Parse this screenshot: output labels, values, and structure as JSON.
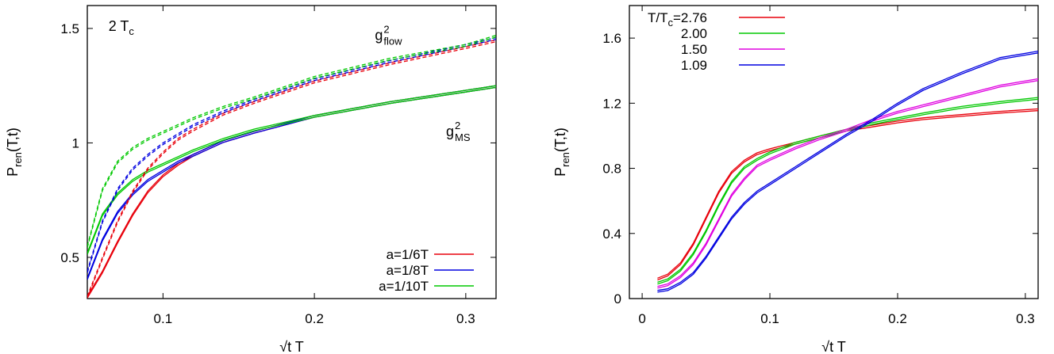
{
  "chart_data": [
    {
      "type": "line",
      "panel": "left",
      "xlabel": "√t T",
      "ylabel": {
        "main": "P",
        "sub": "ren",
        "args": "(T,t)"
      },
      "xlim": [
        0.05,
        0.32
      ],
      "ylim": [
        0.32,
        1.6
      ],
      "xticks": [
        0.1,
        0.2,
        0.3
      ],
      "xtick_labels": [
        "0.1",
        "0.2",
        "0.3"
      ],
      "yticks": [
        0.5,
        1,
        1.5
      ],
      "ytick_labels": [
        "0.5",
        "1",
        "1.5"
      ],
      "annotations": [
        {
          "main": "2 T",
          "sub": "c",
          "x": 0.064,
          "y": 1.49
        },
        {
          "main": "g",
          "sup": "2",
          "sub": "flow",
          "x": 0.24,
          "y": 1.45
        },
        {
          "main": "g",
          "sup": "2",
          "sub": "MS",
          "x": 0.287,
          "y": 1.03
        }
      ],
      "legend_position": "bottom-right",
      "legend": [
        {
          "label": "a=1/6T",
          "color": "#e8000b"
        },
        {
          "label": "a=1/8T",
          "color": "#0000e0"
        },
        {
          "label": "a=1/10T",
          "color": "#00c800"
        }
      ],
      "series": [
        {
          "name": "a=1/6T",
          "scheme": "MS",
          "style": "solid",
          "color": "#e8000b",
          "x": [
            0.05,
            0.06,
            0.07,
            0.08,
            0.09,
            0.1,
            0.11,
            0.12,
            0.14,
            0.16,
            0.2,
            0.25,
            0.3,
            0.32
          ],
          "y": [
            0.33,
            0.44,
            0.57,
            0.69,
            0.79,
            0.86,
            0.91,
            0.95,
            1.01,
            1.05,
            1.12,
            1.18,
            1.23,
            1.25
          ]
        },
        {
          "name": "a=1/8T",
          "scheme": "MS",
          "style": "solid",
          "color": "#0000e0",
          "x": [
            0.05,
            0.06,
            0.07,
            0.08,
            0.09,
            0.1,
            0.11,
            0.12,
            0.14,
            0.16,
            0.2,
            0.25,
            0.3,
            0.32
          ],
          "y": [
            0.41,
            0.58,
            0.7,
            0.78,
            0.84,
            0.88,
            0.92,
            0.95,
            1.01,
            1.05,
            1.12,
            1.18,
            1.23,
            1.25
          ]
        },
        {
          "name": "a=1/10T",
          "scheme": "MS",
          "style": "solid",
          "color": "#00c800",
          "x": [
            0.05,
            0.06,
            0.07,
            0.08,
            0.09,
            0.1,
            0.11,
            0.12,
            0.14,
            0.16,
            0.2,
            0.25,
            0.3,
            0.32
          ],
          "y": [
            0.52,
            0.69,
            0.78,
            0.84,
            0.88,
            0.91,
            0.94,
            0.97,
            1.02,
            1.06,
            1.12,
            1.18,
            1.23,
            1.25
          ]
        },
        {
          "name": "a=1/6T",
          "scheme": "flow",
          "style": "dashed",
          "color": "#e8000b",
          "x": [
            0.05,
            0.06,
            0.07,
            0.08,
            0.09,
            0.1,
            0.11,
            0.12,
            0.14,
            0.16,
            0.2,
            0.25,
            0.3,
            0.32
          ],
          "y": [
            0.33,
            0.5,
            0.66,
            0.79,
            0.89,
            0.96,
            1.02,
            1.06,
            1.13,
            1.18,
            1.27,
            1.35,
            1.42,
            1.45
          ]
        },
        {
          "name": "a=1/8T",
          "scheme": "flow",
          "style": "dashed",
          "color": "#0000e0",
          "x": [
            0.05,
            0.06,
            0.07,
            0.08,
            0.09,
            0.1,
            0.11,
            0.12,
            0.14,
            0.16,
            0.2,
            0.25,
            0.3,
            0.32
          ],
          "y": [
            0.44,
            0.66,
            0.8,
            0.89,
            0.95,
            1.0,
            1.04,
            1.08,
            1.14,
            1.19,
            1.28,
            1.36,
            1.43,
            1.46
          ]
        },
        {
          "name": "a=1/10T",
          "scheme": "flow",
          "style": "dashed",
          "color": "#00c800",
          "x": [
            0.05,
            0.06,
            0.07,
            0.08,
            0.09,
            0.1,
            0.11,
            0.12,
            0.14,
            0.16,
            0.2,
            0.25,
            0.3,
            0.32
          ],
          "y": [
            0.55,
            0.8,
            0.92,
            0.98,
            1.02,
            1.05,
            1.08,
            1.11,
            1.16,
            1.2,
            1.29,
            1.37,
            1.43,
            1.47
          ]
        }
      ]
    },
    {
      "type": "line",
      "panel": "right",
      "xlabel": "√t T",
      "ylabel": {
        "main": "P",
        "sub": "ren",
        "args": "(T,t)"
      },
      "xlim": [
        -0.01,
        0.31
      ],
      "ylim": [
        0,
        1.8
      ],
      "xticks": [
        0,
        0.1,
        0.2,
        0.3
      ],
      "xtick_labels": [
        "0",
        "0.1",
        "0.2",
        "0.3"
      ],
      "yticks": [
        0,
        0.4,
        0.8,
        1.2,
        1.6
      ],
      "ytick_labels": [
        "0",
        "0.4",
        "0.8",
        "1.2",
        "1.6"
      ],
      "legend_position": "top-left",
      "legend": [
        {
          "label_main": "T/T",
          "label_sub": "c",
          "label_rest": "=2.76",
          "color": "#e8000b"
        },
        {
          "label_main": "",
          "label_sub": "",
          "label_rest": "2.00",
          "color": "#00c800"
        },
        {
          "label_main": "",
          "label_sub": "",
          "label_rest": "1.50",
          "color": "#e000e0"
        },
        {
          "label_main": "",
          "label_sub": "",
          "label_rest": "1.09",
          "color": "#0000e0"
        }
      ],
      "series": [
        {
          "name": "T/Tc=2.76",
          "color": "#e8000b",
          "x": [
            0.012,
            0.02,
            0.03,
            0.04,
            0.05,
            0.06,
            0.07,
            0.08,
            0.09,
            0.1,
            0.12,
            0.14,
            0.16,
            0.18,
            0.2,
            0.22,
            0.25,
            0.28,
            0.31
          ],
          "y": [
            0.125,
            0.15,
            0.22,
            0.34,
            0.5,
            0.66,
            0.78,
            0.85,
            0.895,
            0.92,
            0.96,
            1.0,
            1.04,
            1.065,
            1.09,
            1.11,
            1.13,
            1.15,
            1.165
          ]
        },
        {
          "name": "T/Tc=2.00",
          "color": "#00c800",
          "x": [
            0.012,
            0.02,
            0.03,
            0.04,
            0.05,
            0.06,
            0.07,
            0.08,
            0.09,
            0.1,
            0.12,
            0.14,
            0.16,
            0.18,
            0.2,
            0.22,
            0.25,
            0.28,
            0.31
          ],
          "y": [
            0.1,
            0.12,
            0.18,
            0.28,
            0.42,
            0.58,
            0.72,
            0.81,
            0.86,
            0.9,
            0.96,
            1.0,
            1.04,
            1.08,
            1.11,
            1.14,
            1.18,
            1.21,
            1.235
          ]
        },
        {
          "name": "T/Tc=1.50",
          "color": "#e000e0",
          "x": [
            0.012,
            0.02,
            0.03,
            0.04,
            0.05,
            0.06,
            0.07,
            0.08,
            0.09,
            0.1,
            0.12,
            0.14,
            0.16,
            0.18,
            0.2,
            0.22,
            0.25,
            0.28,
            0.31
          ],
          "y": [
            0.075,
            0.09,
            0.14,
            0.22,
            0.34,
            0.49,
            0.64,
            0.74,
            0.82,
            0.86,
            0.93,
            0.99,
            1.04,
            1.1,
            1.15,
            1.19,
            1.25,
            1.31,
            1.35
          ]
        },
        {
          "name": "T/Tc=1.09",
          "color": "#0000e0",
          "x": [
            0.012,
            0.02,
            0.03,
            0.04,
            0.05,
            0.06,
            0.07,
            0.08,
            0.09,
            0.1,
            0.12,
            0.14,
            0.16,
            0.18,
            0.2,
            0.22,
            0.25,
            0.28,
            0.31
          ],
          "y": [
            0.05,
            0.06,
            0.1,
            0.16,
            0.26,
            0.38,
            0.5,
            0.59,
            0.66,
            0.71,
            0.81,
            0.91,
            1.01,
            1.1,
            1.2,
            1.29,
            1.39,
            1.48,
            1.52
          ]
        }
      ]
    }
  ]
}
